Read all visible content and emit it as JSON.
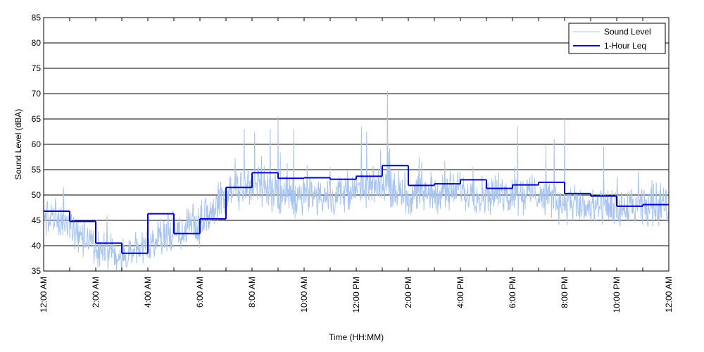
{
  "chart_data": {
    "type": "line",
    "xlabel": "Time (HH:MM)",
    "ylabel": "Sound Level (dBA)",
    "xlim_hours": [
      0,
      24
    ],
    "ylim": [
      35,
      85
    ],
    "yticks": [
      35,
      40,
      45,
      50,
      55,
      60,
      65,
      70,
      75,
      80,
      85
    ],
    "xticks": [
      {
        "h": 0,
        "label": "12:00 AM"
      },
      {
        "h": 2,
        "label": "2:00 AM"
      },
      {
        "h": 4,
        "label": "4:00 AM"
      },
      {
        "h": 6,
        "label": "6:00 AM"
      },
      {
        "h": 8,
        "label": "8:00 AM"
      },
      {
        "h": 10,
        "label": "10:00 AM"
      },
      {
        "h": 12,
        "label": "12:00 PM"
      },
      {
        "h": 14,
        "label": "2:00 PM"
      },
      {
        "h": 16,
        "label": "4:00 PM"
      },
      {
        "h": 18,
        "label": "6:00 PM"
      },
      {
        "h": 20,
        "label": "8:00 PM"
      },
      {
        "h": 22,
        "label": "10:00 PM"
      },
      {
        "h": 24,
        "label": "12:00 AM"
      }
    ],
    "grid": "horizontal",
    "legend_position": "top-right",
    "series": [
      {
        "name": "Sound Level",
        "color": "#a8c4f0",
        "hourly_baseline": [
          46,
          44,
          40,
          37,
          40,
          43,
          44,
          50,
          52,
          50,
          49.5,
          50,
          50.5,
          52,
          50,
          50.5,
          51,
          50,
          50,
          50.5,
          48,
          47.5,
          47,
          47.5
        ],
        "peaks": [
          {
            "h": 7.7,
            "y": 63
          },
          {
            "h": 8.1,
            "y": 62.5
          },
          {
            "h": 8.7,
            "y": 63
          },
          {
            "h": 9.0,
            "y": 65.5
          },
          {
            "h": 9.6,
            "y": 63
          },
          {
            "h": 12.2,
            "y": 63.5
          },
          {
            "h": 12.4,
            "y": 62.5
          },
          {
            "h": 13.2,
            "y": 70.5
          },
          {
            "h": 18.2,
            "y": 63.5
          },
          {
            "h": 19.6,
            "y": 61
          },
          {
            "h": 20.0,
            "y": 65
          },
          {
            "h": 21.5,
            "y": 59.5
          }
        ]
      },
      {
        "name": "1-Hour Leq",
        "color": "#0000cc",
        "values": [
          46.8,
          44.8,
          40.5,
          38.5,
          46.3,
          42.4,
          45.3,
          51.5,
          54.4,
          53.3,
          53.4,
          53.1,
          53.7,
          55.8,
          51.9,
          52.2,
          53.0,
          51.3,
          52.0,
          52.5,
          50.3,
          49.8,
          47.8,
          48.1
        ]
      }
    ]
  }
}
